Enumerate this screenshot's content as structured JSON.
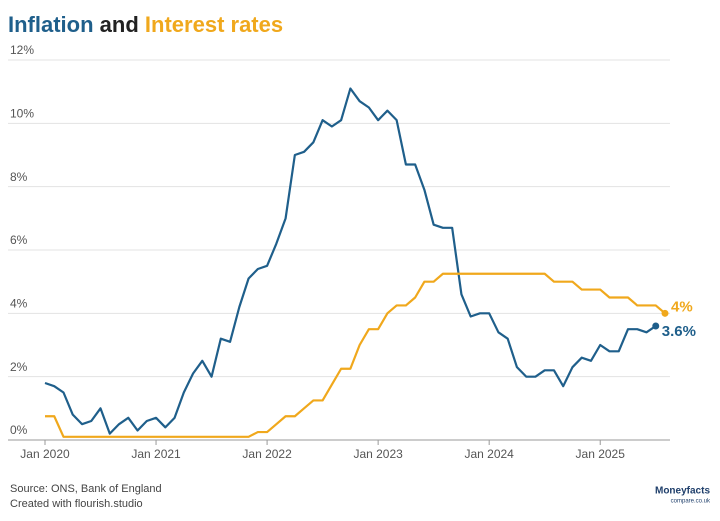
{
  "chart_data": {
    "type": "line",
    "title_parts": [
      "Inflation",
      "and",
      "Interest rates"
    ],
    "x": [
      "2020-01",
      "2020-02",
      "2020-03",
      "2020-04",
      "2020-05",
      "2020-06",
      "2020-07",
      "2020-08",
      "2020-09",
      "2020-10",
      "2020-11",
      "2020-12",
      "2021-01",
      "2021-02",
      "2021-03",
      "2021-04",
      "2021-05",
      "2021-06",
      "2021-07",
      "2021-08",
      "2021-09",
      "2021-10",
      "2021-11",
      "2021-12",
      "2022-01",
      "2022-02",
      "2022-03",
      "2022-04",
      "2022-05",
      "2022-06",
      "2022-07",
      "2022-08",
      "2022-09",
      "2022-10",
      "2022-11",
      "2022-12",
      "2023-01",
      "2023-02",
      "2023-03",
      "2023-04",
      "2023-05",
      "2023-06",
      "2023-07",
      "2023-08",
      "2023-09",
      "2023-10",
      "2023-11",
      "2023-12",
      "2024-01",
      "2024-02",
      "2024-03",
      "2024-04",
      "2024-05",
      "2024-06",
      "2024-07",
      "2024-08",
      "2024-09",
      "2024-10",
      "2024-11",
      "2024-12",
      "2025-01",
      "2025-02",
      "2025-03",
      "2025-04",
      "2025-05",
      "2025-06",
      "2025-07",
      "2025-08"
    ],
    "series": [
      {
        "name": "Inflation",
        "color": "#1f5f8b",
        "values": [
          1.8,
          1.7,
          1.5,
          0.8,
          0.5,
          0.6,
          1.0,
          0.2,
          0.5,
          0.7,
          0.3,
          0.6,
          0.7,
          0.4,
          0.7,
          1.5,
          2.1,
          2.5,
          2.0,
          3.2,
          3.1,
          4.2,
          5.1,
          5.4,
          5.5,
          6.2,
          7.0,
          9.0,
          9.1,
          9.4,
          10.1,
          9.9,
          10.1,
          11.1,
          10.7,
          10.5,
          10.1,
          10.4,
          10.1,
          8.7,
          8.7,
          7.9,
          6.8,
          6.7,
          6.7,
          4.6,
          3.9,
          4.0,
          4.0,
          3.4,
          3.2,
          2.3,
          2.0,
          2.0,
          2.2,
          2.2,
          1.7,
          2.3,
          2.6,
          2.5,
          3.0,
          2.8,
          2.8,
          3.5,
          3.5,
          3.4,
          3.6,
          null
        ],
        "value_labels": [
          null,
          null,
          null,
          null,
          null,
          null,
          null,
          null,
          null,
          null,
          null,
          null,
          null,
          null,
          null,
          null,
          null,
          null,
          null,
          null,
          null,
          null,
          null,
          null,
          null,
          null,
          null,
          null,
          null,
          null,
          null,
          null,
          null,
          null,
          null,
          null,
          null,
          null,
          null,
          null,
          null,
          null,
          null,
          null,
          null,
          null,
          null,
          null,
          null,
          null,
          null,
          null,
          null,
          null,
          null,
          null,
          null,
          null,
          null,
          null,
          null,
          null,
          null,
          null,
          null,
          null,
          "3.6%",
          null
        ]
      },
      {
        "name": "Interest rates",
        "color": "#f0a81c",
        "values": [
          0.75,
          0.75,
          0.1,
          0.1,
          0.1,
          0.1,
          0.1,
          0.1,
          0.1,
          0.1,
          0.1,
          0.1,
          0.1,
          0.1,
          0.1,
          0.1,
          0.1,
          0.1,
          0.1,
          0.1,
          0.1,
          0.1,
          0.1,
          0.25,
          0.25,
          0.5,
          0.75,
          0.75,
          1,
          1.25,
          1.25,
          1.75,
          2.25,
          2.25,
          3,
          3.5,
          3.5,
          4,
          4.25,
          4.25,
          4.5,
          5,
          5,
          5.25,
          5.25,
          5.25,
          5.25,
          5.25,
          5.25,
          5.25,
          5.25,
          5.25,
          5.25,
          5.25,
          5.25,
          5,
          5,
          5,
          4.75,
          4.75,
          4.75,
          4.5,
          4.5,
          4.5,
          4.25,
          4.25,
          4.25,
          4
        ],
        "value_labels": [
          null,
          null,
          null,
          null,
          null,
          null,
          null,
          null,
          null,
          null,
          null,
          null,
          null,
          null,
          null,
          null,
          null,
          null,
          null,
          null,
          null,
          null,
          null,
          null,
          null,
          null,
          null,
          null,
          null,
          null,
          null,
          null,
          null,
          null,
          null,
          null,
          null,
          null,
          null,
          null,
          null,
          null,
          null,
          null,
          null,
          null,
          null,
          null,
          null,
          null,
          null,
          null,
          null,
          null,
          null,
          null,
          null,
          null,
          null,
          null,
          null,
          null,
          null,
          null,
          null,
          null,
          null,
          "4%"
        ]
      }
    ],
    "xlim": [
      "2020-01",
      "2025-08"
    ],
    "xticks": [
      {
        "value": "2020-01",
        "label": "Jan 2020"
      },
      {
        "value": "2021-01",
        "label": "Jan 2021"
      },
      {
        "value": "2022-01",
        "label": "Jan 2022"
      },
      {
        "value": "2023-01",
        "label": "Jan 2023"
      },
      {
        "value": "2024-01",
        "label": "Jan 2024"
      },
      {
        "value": "2025-01",
        "label": "Jan 2025"
      }
    ],
    "ylim": [
      0,
      12
    ],
    "yticks": [
      {
        "value": 0,
        "label": "0%"
      },
      {
        "value": 2,
        "label": "2%"
      },
      {
        "value": 4,
        "label": "4%"
      },
      {
        "value": 6,
        "label": "6%"
      },
      {
        "value": 8,
        "label": "8%"
      },
      {
        "value": 10,
        "label": "10%"
      },
      {
        "value": 12,
        "label": "12%"
      }
    ],
    "grid": true,
    "source": "Source: ONS, Bank of England",
    "credit": "Created with flourish.studio",
    "logo": [
      "Moneyfacts",
      "compare.co.uk"
    ]
  }
}
